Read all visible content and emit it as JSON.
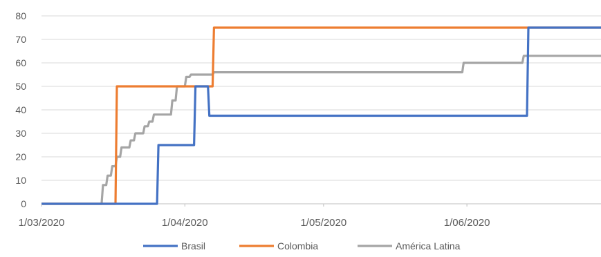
{
  "chart_data": {
    "type": "line",
    "x_type": "date",
    "x_range": [
      "2020-03-01",
      "2020-06-30"
    ],
    "ylim": [
      0,
      80
    ],
    "yticks": [
      0,
      10,
      20,
      30,
      40,
      50,
      60,
      70,
      80
    ],
    "xticks": [
      {
        "date": "2020-03-01",
        "label": "1/03/2020"
      },
      {
        "date": "2020-04-01",
        "label": "1/04/2020"
      },
      {
        "date": "2020-05-01",
        "label": "1/05/2020"
      },
      {
        "date": "2020-06-01",
        "label": "1/06/2020"
      }
    ],
    "grid": true,
    "legend_position": "bottom",
    "title": "",
    "xlabel": "",
    "ylabel": "",
    "series": [
      {
        "name": "Brasil",
        "color": "#4472C4",
        "step": true,
        "points": [
          [
            "2020-03-01",
            0
          ],
          [
            "2020-03-26",
            25
          ],
          [
            "2020-04-03",
            50
          ],
          [
            "2020-04-06",
            37.5
          ],
          [
            "2020-06-14",
            75
          ],
          [
            "2020-06-30",
            75
          ]
        ]
      },
      {
        "name": "Colombia",
        "color": "#ED7D31",
        "step": true,
        "points": [
          [
            "2020-03-01",
            0
          ],
          [
            "2020-03-17",
            50
          ],
          [
            "2020-04-07",
            75
          ],
          [
            "2020-06-30",
            75
          ]
        ]
      },
      {
        "name": "América Latina",
        "color": "#A5A5A5",
        "step": true,
        "points": [
          [
            "2020-03-01",
            0
          ],
          [
            "2020-03-14",
            8
          ],
          [
            "2020-03-15",
            12
          ],
          [
            "2020-03-16",
            16
          ],
          [
            "2020-03-17",
            20
          ],
          [
            "2020-03-18",
            24
          ],
          [
            "2020-03-20",
            27
          ],
          [
            "2020-03-21",
            30
          ],
          [
            "2020-03-23",
            33
          ],
          [
            "2020-03-24",
            35
          ],
          [
            "2020-03-25",
            38
          ],
          [
            "2020-03-29",
            44
          ],
          [
            "2020-03-30",
            50
          ],
          [
            "2020-04-01",
            54
          ],
          [
            "2020-04-02",
            55
          ],
          [
            "2020-04-07",
            56
          ],
          [
            "2020-05-31",
            60
          ],
          [
            "2020-06-13",
            63
          ],
          [
            "2020-06-30",
            63
          ]
        ]
      }
    ]
  }
}
